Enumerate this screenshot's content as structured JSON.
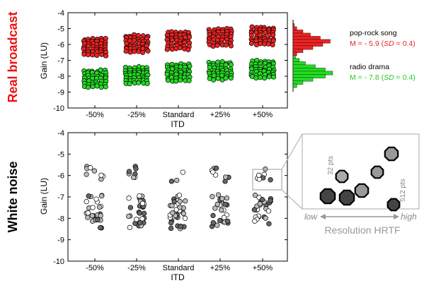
{
  "figure": {
    "row_labels": [
      {
        "text": "Real broadcast",
        "color": "#ee1111"
      },
      {
        "text": "White noise",
        "color": "#000000"
      }
    ],
    "side_labels": {
      "song": "pop-rock song",
      "song_stats_prefix": "M = - 5.9 (",
      "song_stats_sd": "SD",
      "song_stats_suffix": " = 0.4)",
      "drama": "radio drama",
      "drama_stats_prefix": "M = - 7.8 (",
      "drama_stats_sd": "SD",
      "drama_stats_suffix": " = 0.4)"
    },
    "inset": {
      "label_32": "32 pts",
      "label_512": "512 pts",
      "axis_low": "low",
      "axis_high": "high",
      "axis_title": "Resolution HRTF"
    },
    "colors": {
      "song": "#ee2222",
      "drama": "#22dd22",
      "noise_light": "#ffffff",
      "noise_mid": "#bbbbbb",
      "noise_dark": "#666666"
    }
  },
  "chart_data": [
    {
      "type": "scatter",
      "title": "",
      "xlabel": "ITD",
      "ylabel": "Gain (LU)",
      "categories": [
        "-50%",
        "-25%",
        "Standard",
        "+25%",
        "+50%"
      ],
      "ylim": [
        -10,
        -4
      ],
      "yticks": [
        -10,
        -9,
        -8,
        -7,
        -6,
        -5,
        -4
      ],
      "series": [
        {
          "name": "pop-rock song",
          "category_means": [
            -6.2,
            -6.0,
            -5.8,
            -5.6,
            -5.5
          ]
        },
        {
          "name": "radio drama",
          "category_means": [
            -8.2,
            -8.0,
            -7.8,
            -7.7,
            -7.6
          ]
        }
      ]
    },
    {
      "type": "bar",
      "title": "",
      "orientation": "horizontal",
      "series": [
        {
          "name": "pop-rock song",
          "mean": -5.9,
          "sd": 0.4,
          "bins": [
            -4.8,
            -5.0,
            -5.2,
            -5.4,
            -5.6,
            -5.8,
            -6.0,
            -6.2,
            -6.4,
            -6.6
          ],
          "counts": [
            1,
            3,
            8,
            14,
            22,
            30,
            24,
            16,
            8,
            3
          ]
        },
        {
          "name": "radio drama",
          "mean": -7.8,
          "sd": 0.4,
          "bins": [
            -6.8,
            -7.0,
            -7.2,
            -7.4,
            -7.6,
            -7.8,
            -8.0,
            -8.2,
            -8.4,
            -8.6
          ],
          "counts": [
            2,
            5,
            10,
            18,
            26,
            32,
            26,
            16,
            8,
            3
          ]
        }
      ]
    },
    {
      "type": "scatter",
      "title": "",
      "xlabel": "ITD",
      "ylabel": "Gain (LU)",
      "categories": [
        "-50%",
        "-25%",
        "Standard",
        "+25%",
        "+50%"
      ],
      "ylim": [
        -10,
        -4
      ],
      "yticks": [
        -10,
        -9,
        -8,
        -7,
        -6,
        -5,
        -4
      ],
      "series": [
        {
          "name": "",
          "category_range": [
            -8.6,
            -5.4
          ]
        }
      ]
    }
  ]
}
